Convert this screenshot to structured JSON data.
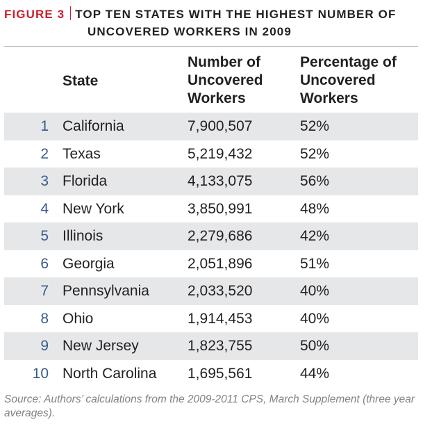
{
  "figure": {
    "label": "FIGURE 3",
    "title_line1": "TOP TEN STATES WITH THE HIGHEST NUMBER OF",
    "title_line2": "UNCOVERED WORKERS IN 2009"
  },
  "table": {
    "columns": {
      "state": "State",
      "number": [
        "Number of",
        "Uncovered",
        "Workers"
      ],
      "percentage": [
        "Percentage of",
        "Uncovered",
        "Workers"
      ]
    },
    "rows": [
      {
        "rank": "1",
        "state": "California",
        "number": "7,900,507",
        "percentage": "52%"
      },
      {
        "rank": "2",
        "state": "Texas",
        "number": "5,219,432",
        "percentage": "52%"
      },
      {
        "rank": "3",
        "state": "Florida",
        "number": "4,133,075",
        "percentage": "56%"
      },
      {
        "rank": "4",
        "state": "New York",
        "number": "3,850,991",
        "percentage": "48%"
      },
      {
        "rank": "5",
        "state": "Illinois",
        "number": "2,279,686",
        "percentage": "42%"
      },
      {
        "rank": "6",
        "state": "Georgia",
        "number": "2,051,896",
        "percentage": "51%"
      },
      {
        "rank": "7",
        "state": "Pennsylvania",
        "number": "2,033,520",
        "percentage": "40%"
      },
      {
        "rank": "8",
        "state": "Ohio",
        "number": "1,914,453",
        "percentage": "40%"
      },
      {
        "rank": "9",
        "state": "New Jersey",
        "number": "1,823,755",
        "percentage": "50%"
      },
      {
        "rank": "10",
        "state": "North Carolina",
        "number": "1,695,561",
        "percentage": "44%"
      }
    ]
  },
  "source": "Source: Authors’ calculations from the 2009-2011 CPS, March Supplement (three year averages).",
  "colors": {
    "figure_label": "#c8202f",
    "row_shade": "#e6e7e8",
    "rank_number": "#3a5a8c",
    "source_text": "#808285"
  }
}
